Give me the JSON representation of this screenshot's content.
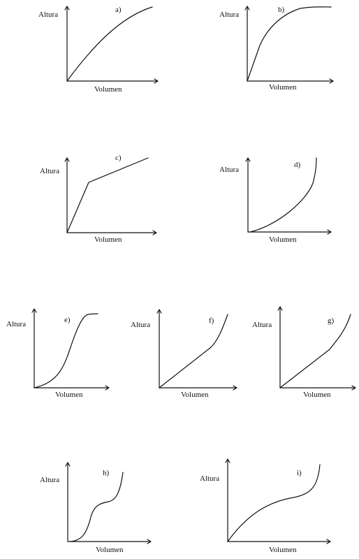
{
  "panels": [
    {
      "label": "a)",
      "ylabel": "Altura",
      "xlabel": "Volumen"
    },
    {
      "label": "b)",
      "ylabel": "Altura",
      "xlabel": "Volumen"
    },
    {
      "label": "c)",
      "ylabel": "Altura",
      "xlabel": "Volumen"
    },
    {
      "label": "d)",
      "ylabel": "Altura",
      "xlabel": "Volumen"
    },
    {
      "label": "e)",
      "ylabel": "Altura",
      "xlabel": "Volumen"
    },
    {
      "label": "f)",
      "ylabel": "Altura",
      "xlabel": "Volumen"
    },
    {
      "label": "g)",
      "ylabel": "Altura",
      "xlabel": "Volumen"
    },
    {
      "label": "h)",
      "ylabel": "Altura",
      "xlabel": "Volumen"
    },
    {
      "label": "i)",
      "ylabel": "Altura",
      "xlabel": "Volumen"
    }
  ],
  "colors": {
    "ink": "#111111",
    "background": "#ffffff"
  }
}
